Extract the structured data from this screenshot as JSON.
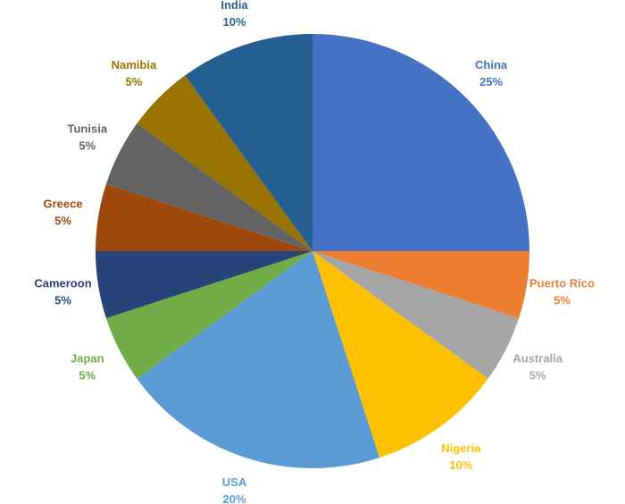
{
  "chart_data": {
    "type": "pie",
    "title": "",
    "start": "12 o'clock",
    "direction": "clockwise",
    "slices": [
      {
        "label": "China",
        "value": 25,
        "value_label": "25%",
        "color": "#4472C4"
      },
      {
        "label": "Puerto Rico",
        "value": 5,
        "value_label": "5%",
        "color": "#ED7D31"
      },
      {
        "label": "Australia",
        "value": 5,
        "value_label": "5%",
        "color": "#A5A5A5"
      },
      {
        "label": "Nigeria",
        "value": 10,
        "value_label": "10%",
        "color": "#FFC000"
      },
      {
        "label": "USA",
        "value": 20,
        "value_label": "20%",
        "color": "#5B9BD5"
      },
      {
        "label": "Japan",
        "value": 5,
        "value_label": "5%",
        "color": "#70AD47"
      },
      {
        "label": "Cameroon",
        "value": 5,
        "value_label": "5%",
        "color": "#264478"
      },
      {
        "label": "Greece",
        "value": 5,
        "value_label": "5%",
        "color": "#9E480E"
      },
      {
        "label": "Tunisia",
        "value": 5,
        "value_label": "5%",
        "color": "#636363"
      },
      {
        "label": "Namibia",
        "value": 5,
        "value_label": "5%",
        "color": "#997300"
      },
      {
        "label": "India",
        "value": 10,
        "value_label": "10%",
        "color": "#255E91"
      }
    ]
  }
}
